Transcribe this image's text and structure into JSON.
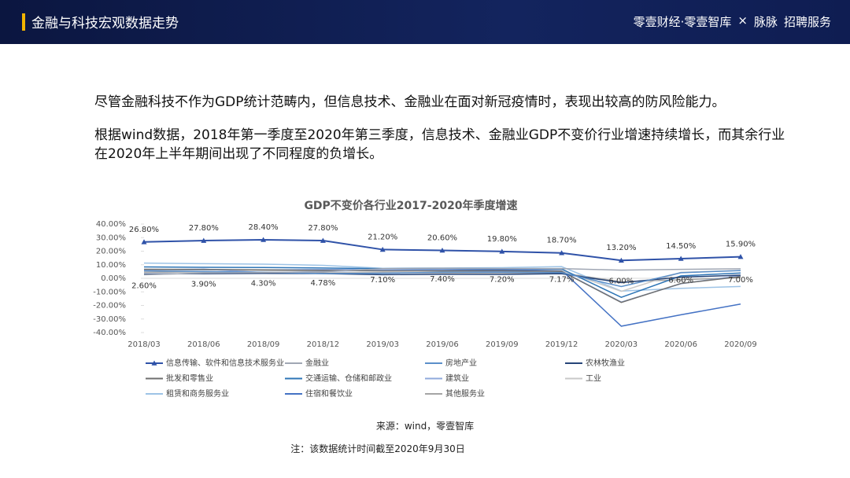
{
  "header": {
    "title": "金融与科技宏观数据走势",
    "logo": "零壹财经·零壹智库",
    "times": "×",
    "partner": "脉脉",
    "service": "招聘服务"
  },
  "paragraphs": [
    "尽管金融科技不作为GDP统计范畴内，但信息技术、金融业在面对新冠疫情时，表现出较高的防风险能力。",
    "根据wind数据，2018年第一季度至2020年第三季度，信息技术、金融业GDP不变价行业增速持续增长，而其余行业在2020年上半年期间出现了不同程度的负增长。"
  ],
  "chart_data": {
    "type": "line",
    "title": "GDP不变价各行业2017-2020年季度增速",
    "categories": [
      "2018/03",
      "2018/06",
      "2018/09",
      "2018/12",
      "2019/03",
      "2019/06",
      "2019/09",
      "2019/12",
      "2020/03",
      "2020/06",
      "2020/09"
    ],
    "ylim": [
      -40,
      40
    ],
    "yticks": [
      {
        "value": 40,
        "label": "40.00%"
      },
      {
        "value": 30,
        "label": "30.00%"
      },
      {
        "value": 20,
        "label": "20.00%"
      },
      {
        "value": 10,
        "label": "10.00%"
      },
      {
        "value": 0,
        "label": "0.00%"
      },
      {
        "value": -10,
        "label": "-10.00%"
      },
      {
        "value": -20,
        "label": "-20.00%"
      },
      {
        "value": -30,
        "label": "-30.00%"
      },
      {
        "value": -40,
        "label": "-40.00%"
      }
    ],
    "series": [
      {
        "name": "信息传输、软件和信息技术服务业",
        "color": "#2f52a8",
        "values": [
          26.8,
          27.8,
          28.4,
          27.8,
          21.2,
          20.6,
          19.8,
          18.7,
          13.2,
          14.5,
          15.9
        ],
        "value_labels": [
          "26.80%",
          "27.80%",
          "28.40%",
          "27.80%",
          "21.20%",
          "20.60%",
          "19.80%",
          "18.70%",
          "13.20%",
          "14.50%",
          "15.90%"
        ]
      },
      {
        "name": "金融业",
        "color": "#a0a7b4",
        "values": [
          2.6,
          3.9,
          4.3,
          4.78,
          7.1,
          7.4,
          7.2,
          7.17,
          6.0,
          6.6,
          7.0
        ],
        "value_labels": [
          "2.60%",
          "3.90%",
          "4.30%",
          "4.78%",
          "7.10%",
          "7.40%",
          "7.20%",
          "7.17%",
          "6.00%",
          "6.60%",
          "7.00%"
        ]
      },
      {
        "name": "房地产业",
        "color": "#5b8fc9",
        "values": [
          5.5,
          5.0,
          4.5,
          3.5,
          3.8,
          4.5,
          4.5,
          4.2,
          -6.1,
          4.1,
          5.7
        ]
      },
      {
        "name": "农林牧渔业",
        "color": "#264478",
        "values": [
          3.2,
          3.4,
          3.6,
          3.5,
          2.7,
          3.0,
          2.9,
          3.4,
          -3.2,
          0.9,
          2.3
        ]
      },
      {
        "name": "批发和零售业",
        "color": "#6f6f6f",
        "values": [
          6.7,
          6.5,
          6.2,
          5.8,
          5.4,
          5.5,
          5.6,
          5.1,
          -17.8,
          -3.8,
          1.2
        ]
      },
      {
        "name": "交通运输、仓储和邮政业",
        "color": "#2e75b6",
        "values": [
          8.4,
          8.1,
          8.0,
          7.6,
          7.1,
          7.3,
          7.1,
          6.9,
          -14.0,
          1.8,
          3.9
        ]
      },
      {
        "name": "建筑业",
        "color": "#8faadc",
        "values": [
          6.3,
          6.8,
          4.2,
          4.9,
          6.3,
          5.9,
          5.1,
          5.3,
          -17.5,
          -4.0,
          2.0
        ]
      },
      {
        "name": "工业",
        "color": "#c8c8c8",
        "values": [
          6.1,
          6.5,
          5.7,
          5.7,
          6.1,
          5.3,
          4.8,
          5.8,
          -9.6,
          4.4,
          5.8
        ]
      },
      {
        "name": "租赁和商务服务业",
        "color": "#9dc3e6",
        "values": [
          11.2,
          10.8,
          10.4,
          9.6,
          7.4,
          7.6,
          7.8,
          8.6,
          -9.4,
          -7.4,
          -6.0
        ]
      },
      {
        "name": "住宿和餐饮业",
        "color": "#4472c4",
        "values": [
          6.1,
          6.4,
          6.1,
          6.3,
          6.3,
          6.3,
          6.2,
          6.0,
          -35.3,
          -26.9,
          -19.0
        ]
      },
      {
        "name": "其他服务业",
        "color": "#a5a5a5",
        "values": [
          4.5,
          4.7,
          4.4,
          4.0,
          4.1,
          4.0,
          4.0,
          3.9,
          -2.5,
          -1.1,
          0.5
        ]
      }
    ]
  },
  "source": "来源：wind，零壹智库",
  "note": "注：该数据统计时间截至2020年9月30日"
}
